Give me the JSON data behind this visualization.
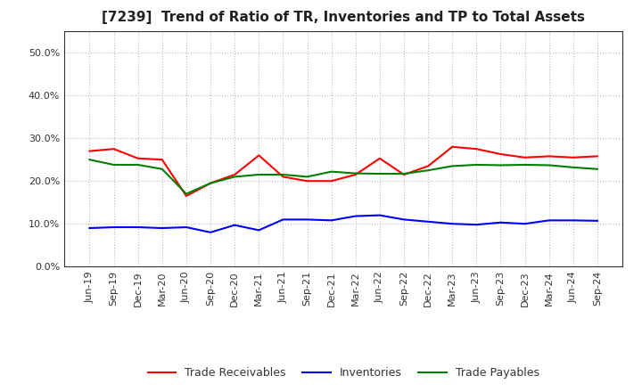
{
  "title": "[7239]  Trend of Ratio of TR, Inventories and TP to Total Assets",
  "x_labels": [
    "Jun-19",
    "Sep-19",
    "Dec-19",
    "Mar-20",
    "Jun-20",
    "Sep-20",
    "Dec-20",
    "Mar-21",
    "Jun-21",
    "Sep-21",
    "Dec-21",
    "Mar-22",
    "Jun-22",
    "Sep-22",
    "Dec-22",
    "Mar-23",
    "Jun-23",
    "Sep-23",
    "Dec-23",
    "Mar-24",
    "Jun-24",
    "Sep-24"
  ],
  "trade_receivables": [
    0.27,
    0.275,
    0.253,
    0.25,
    0.165,
    0.195,
    0.215,
    0.26,
    0.21,
    0.2,
    0.2,
    0.215,
    0.253,
    0.215,
    0.235,
    0.28,
    0.275,
    0.263,
    0.255,
    0.258,
    0.255,
    0.258
  ],
  "inventories": [
    0.09,
    0.092,
    0.092,
    0.09,
    0.092,
    0.08,
    0.097,
    0.085,
    0.11,
    0.11,
    0.108,
    0.118,
    0.12,
    0.11,
    0.105,
    0.1,
    0.098,
    0.103,
    0.1,
    0.108,
    0.108,
    0.107
  ],
  "trade_payables": [
    0.25,
    0.238,
    0.238,
    0.228,
    0.17,
    0.195,
    0.21,
    0.215,
    0.215,
    0.21,
    0.222,
    0.218,
    0.217,
    0.217,
    0.225,
    0.235,
    0.238,
    0.237,
    0.238,
    0.237,
    0.232,
    0.228
  ],
  "tr_color": "#FF0000",
  "inv_color": "#0000FF",
  "tp_color": "#008000",
  "ylim": [
    0.0,
    0.55
  ],
  "yticks": [
    0.0,
    0.1,
    0.2,
    0.3,
    0.4,
    0.5
  ],
  "background_color": "#FFFFFF",
  "plot_bg_color": "#FFFFFF",
  "grid_color": "#BBBBBB",
  "title_fontsize": 11,
  "tick_fontsize": 8,
  "legend_fontsize": 9
}
